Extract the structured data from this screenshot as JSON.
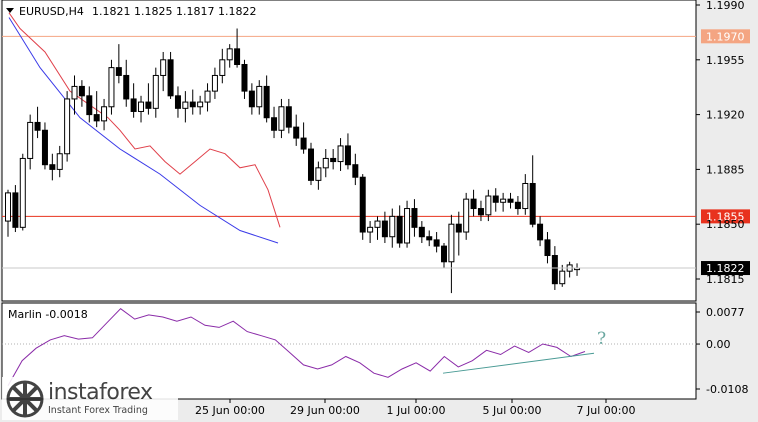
{
  "header": {
    "symbol": "EURUSD,H4",
    "ohlc": "1.1821 1.1825 1.1817 1.1822"
  },
  "chart_data": [
    {
      "type": "candlestick",
      "title": "EURUSD,H4",
      "ylim": [
        1.1795,
        1.199
      ],
      "y_ticks": [
        "1.1990",
        "1.1955",
        "1.1920",
        "1.1885",
        "1.1850",
        "1.1815"
      ],
      "x_ticks": [
        "25 Jun 00:00",
        "29 Jun 00:00",
        "1 Jul 00:00",
        "5 Jul 00:00",
        "7 Jul 00:00"
      ],
      "current_price": "1.1822",
      "horizontal_levels": [
        {
          "price": 1.197,
          "label": "1.1970",
          "color": "#f4a582"
        },
        {
          "price": 1.1855,
          "label": "1.1855",
          "color": "#e8321e"
        }
      ],
      "candles_ohlc": [
        [
          1.1852,
          1.1872,
          1.1842,
          1.187
        ],
        [
          1.187,
          1.1875,
          1.1845,
          1.1848
        ],
        [
          1.1848,
          1.1895,
          1.1846,
          1.1892
        ],
        [
          1.1892,
          1.192,
          1.1885,
          1.1915
        ],
        [
          1.1915,
          1.1925,
          1.1905,
          1.191
        ],
        [
          1.191,
          1.1915,
          1.1885,
          1.1888
        ],
        [
          1.1888,
          1.1895,
          1.1878,
          1.1885
        ],
        [
          1.1885,
          1.19,
          1.188,
          1.1895
        ],
        [
          1.1895,
          1.1935,
          1.189,
          1.193
        ],
        [
          1.193,
          1.1945,
          1.192,
          1.1938
        ],
        [
          1.1938,
          1.1942,
          1.1925,
          1.1932
        ],
        [
          1.1932,
          1.1938,
          1.1915,
          1.192
        ],
        [
          1.192,
          1.1935,
          1.1912,
          1.1916
        ],
        [
          1.1916,
          1.193,
          1.191,
          1.1925
        ],
        [
          1.1925,
          1.1955,
          1.192,
          1.195
        ],
        [
          1.195,
          1.1965,
          1.194,
          1.1945
        ],
        [
          1.1945,
          1.1955,
          1.1925,
          1.193
        ],
        [
          1.193,
          1.194,
          1.1918,
          1.1922
        ],
        [
          1.1922,
          1.1932,
          1.1915,
          1.1928
        ],
        [
          1.1928,
          1.194,
          1.192,
          1.1924
        ],
        [
          1.1924,
          1.195,
          1.1918,
          1.1945
        ],
        [
          1.1945,
          1.196,
          1.1935,
          1.1955
        ],
        [
          1.1955,
          1.196,
          1.193,
          1.1932
        ],
        [
          1.1932,
          1.1938,
          1.1918,
          1.1924
        ],
        [
          1.1924,
          1.1935,
          1.1915,
          1.1928
        ],
        [
          1.1928,
          1.1936,
          1.192,
          1.1925
        ],
        [
          1.1925,
          1.1932,
          1.192,
          1.1928
        ],
        [
          1.1928,
          1.194,
          1.1922,
          1.1935
        ],
        [
          1.1935,
          1.195,
          1.193,
          1.1945
        ],
        [
          1.1945,
          1.1962,
          1.194,
          1.1955
        ],
        [
          1.1955,
          1.1965,
          1.195,
          1.1962
        ],
        [
          1.1962,
          1.1975,
          1.195,
          1.1952
        ],
        [
          1.1952,
          1.1955,
          1.193,
          1.1935
        ],
        [
          1.1935,
          1.194,
          1.192,
          1.1925
        ],
        [
          1.1925,
          1.1942,
          1.192,
          1.1938
        ],
        [
          1.1938,
          1.1945,
          1.1915,
          1.1918
        ],
        [
          1.1918,
          1.1925,
          1.1905,
          1.191
        ],
        [
          1.191,
          1.193,
          1.1905,
          1.1925
        ],
        [
          1.1925,
          1.193,
          1.1908,
          1.1912
        ],
        [
          1.1912,
          1.192,
          1.19,
          1.1905
        ],
        [
          1.1905,
          1.1915,
          1.1895,
          1.1898
        ],
        [
          1.1898,
          1.1902,
          1.1875,
          1.1878
        ],
        [
          1.1878,
          1.189,
          1.1872,
          1.1886
        ],
        [
          1.1886,
          1.1898,
          1.188,
          1.1892
        ],
        [
          1.1892,
          1.1898,
          1.1885,
          1.189
        ],
        [
          1.189,
          1.1905,
          1.1884,
          1.19
        ],
        [
          1.19,
          1.1908,
          1.1885,
          1.1888
        ],
        [
          1.1888,
          1.1895,
          1.1875,
          1.188
        ],
        [
          1.188,
          1.1882,
          1.184,
          1.1845
        ],
        [
          1.1845,
          1.1852,
          1.1838,
          1.1848
        ],
        [
          1.1848,
          1.1855,
          1.184,
          1.1852
        ],
        [
          1.1852,
          1.1858,
          1.1838,
          1.1842
        ],
        [
          1.1842,
          1.186,
          1.1835,
          1.1855
        ],
        [
          1.1855,
          1.1862,
          1.1835,
          1.1838
        ],
        [
          1.1838,
          1.1865,
          1.1835,
          1.186
        ],
        [
          1.186,
          1.1866,
          1.1842,
          1.1848
        ],
        [
          1.1848,
          1.1852,
          1.1838,
          1.1842
        ],
        [
          1.1842,
          1.1846,
          1.1836,
          1.184
        ],
        [
          1.184,
          1.1845,
          1.1832,
          1.1836
        ],
        [
          1.1836,
          1.1838,
          1.1822,
          1.1826
        ],
        [
          1.1826,
          1.1856,
          1.1806,
          1.185
        ],
        [
          1.185,
          1.1858,
          1.183,
          1.1845
        ],
        [
          1.1845,
          1.187,
          1.184,
          1.1866
        ],
        [
          1.1866,
          1.1872,
          1.1855,
          1.186
        ],
        [
          1.186,
          1.1865,
          1.1852,
          1.1856
        ],
        [
          1.1856,
          1.1872,
          1.1852,
          1.1868
        ],
        [
          1.1868,
          1.1873,
          1.1858,
          1.1864
        ],
        [
          1.1864,
          1.187,
          1.1858,
          1.1866
        ],
        [
          1.1866,
          1.187,
          1.186,
          1.1864
        ],
        [
          1.1864,
          1.1868,
          1.1856,
          1.186
        ],
        [
          1.186,
          1.1882,
          1.1856,
          1.1876
        ],
        [
          1.1876,
          1.1894,
          1.1848,
          1.185
        ],
        [
          1.185,
          1.1855,
          1.1836,
          1.184
        ],
        [
          1.184,
          1.1845,
          1.1825,
          1.183
        ],
        [
          1.183,
          1.1836,
          1.1808,
          1.1812
        ],
        [
          1.1812,
          1.1824,
          1.181,
          1.182
        ],
        [
          1.182,
          1.1826,
          1.1816,
          1.1824
        ],
        [
          1.1821,
          1.1825,
          1.1817,
          1.1822
        ]
      ],
      "moving_average_blue": [
        [
          9,
          1.1982
        ],
        [
          40,
          1.195
        ],
        [
          80,
          1.1918
        ],
        [
          120,
          1.1898
        ],
        [
          160,
          1.1882
        ],
        [
          200,
          1.1862
        ],
        [
          240,
          1.1846
        ],
        [
          278,
          1.1838
        ]
      ],
      "envelope_red": [
        [
          9,
          1.1985
        ],
        [
          20,
          1.1975
        ],
        [
          45,
          1.196
        ],
        [
          70,
          1.1935
        ],
        [
          90,
          1.1926
        ],
        [
          108,
          1.1918
        ],
        [
          120,
          1.191
        ],
        [
          135,
          1.1898
        ],
        [
          150,
          1.19
        ],
        [
          165,
          1.189
        ],
        [
          180,
          1.1882
        ],
        [
          195,
          1.189
        ],
        [
          210,
          1.1898
        ],
        [
          225,
          1.1895
        ],
        [
          240,
          1.1886
        ],
        [
          255,
          1.1888
        ],
        [
          268,
          1.1872
        ],
        [
          280,
          1.1848
        ]
      ]
    },
    {
      "type": "line",
      "title": "Marlin -0.0018",
      "ylim": [
        -0.0125,
        0.0095
      ],
      "y_ticks": [
        "0.0077",
        "0.00",
        "-0.0108"
      ],
      "series": [
        {
          "name": "Marlin",
          "values": [
            -0.01,
            -0.004,
            -0.001,
            0.001,
            0.002,
            0.0012,
            0.0015,
            0.005,
            0.0085,
            0.006,
            0.007,
            0.0065,
            0.0055,
            0.0065,
            0.0045,
            0.004,
            0.0055,
            0.003,
            0.002,
            0.001,
            -0.002,
            -0.005,
            -0.006,
            -0.005,
            -0.003,
            -0.0045,
            -0.007,
            -0.008,
            -0.006,
            -0.0045,
            -0.0065,
            -0.003,
            -0.0055,
            -0.004,
            -0.0015,
            -0.0025,
            -0.0005,
            -0.002,
            0.0,
            -0.0008,
            -0.003,
            -0.0018
          ]
        }
      ],
      "trendline": [
        [
          -0.007,
          -0.0022
        ]
      ],
      "annotation": "?"
    }
  ],
  "watermark": {
    "brand": "instaforex",
    "subtitle": "Instant Forex Trading"
  },
  "colors": {
    "background": "#ececec",
    "plot_bg": "#ffffff",
    "bull": "#ffffff",
    "bear": "#000000",
    "ma": "#3a3ae8",
    "envelope": "#e0404a",
    "marlin": "#8a2ba8",
    "trendline": "#4a9b95",
    "annotation": "#6aa7a0"
  }
}
